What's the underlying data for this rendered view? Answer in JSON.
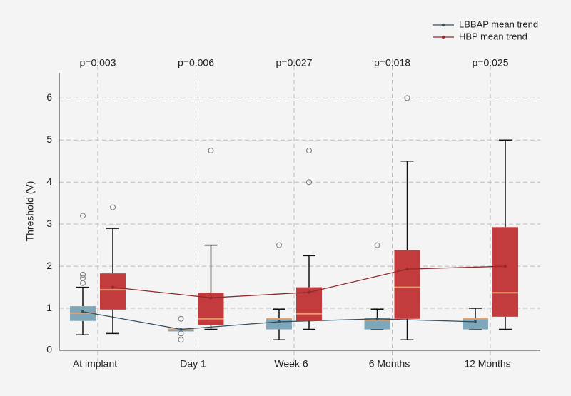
{
  "chart_data": {
    "type": "box",
    "ylabel": "Threshold (V)",
    "categories": [
      "At implant",
      "Day 1",
      "Week 6",
      "6 Months",
      "12 Months"
    ],
    "annotations": [
      "p=0.003",
      "p=0.006",
      "p=0.027",
      "p=0.018",
      "p=0.025"
    ],
    "ylim": [
      0,
      6.6
    ],
    "yticks": [
      0,
      1,
      2,
      3,
      4,
      5,
      6
    ],
    "grid": true,
    "median_color": "#e3a06a",
    "series": [
      {
        "name": "LBBAP mean trend",
        "color": "#34505e",
        "box_color": "#7ea7b9",
        "min": [
          0.37,
          0.5,
          0.25,
          0.5,
          0.5
        ],
        "q1": [
          0.7,
          0.45,
          0.5,
          0.5,
          0.5
        ],
        "median": [
          0.88,
          0.5,
          0.75,
          0.72,
          0.75
        ],
        "q3": [
          1.05,
          0.52,
          0.75,
          0.78,
          0.75
        ],
        "max": [
          1.5,
          0.5,
          0.98,
          0.98,
          1.0
        ],
        "mean": [
          0.92,
          0.5,
          0.68,
          0.75,
          0.68
        ],
        "outliers": [
          [
            3.2,
            1.8,
            1.72,
            1.6
          ],
          [
            0.75,
            0.4,
            0.25
          ],
          [
            2.5
          ],
          [
            2.5
          ],
          []
        ]
      },
      {
        "name": "HBP mean trend",
        "color": "#8e2a2a",
        "box_color": "#c43b3d",
        "min": [
          0.4,
          0.5,
          0.5,
          0.25,
          0.5
        ],
        "q1": [
          0.97,
          0.6,
          0.7,
          0.75,
          0.8
        ],
        "median": [
          1.44,
          0.75,
          0.87,
          1.5,
          1.37
        ],
        "q3": [
          1.83,
          1.37,
          1.5,
          2.38,
          2.93
        ],
        "max": [
          2.9,
          2.5,
          2.25,
          4.5,
          5.0
        ],
        "mean": [
          1.5,
          1.25,
          1.38,
          1.93,
          2.0
        ],
        "outliers": [
          [
            3.4
          ],
          [
            4.75
          ],
          [
            4.75,
            4.0
          ],
          [
            6.0
          ],
          []
        ]
      }
    ]
  }
}
